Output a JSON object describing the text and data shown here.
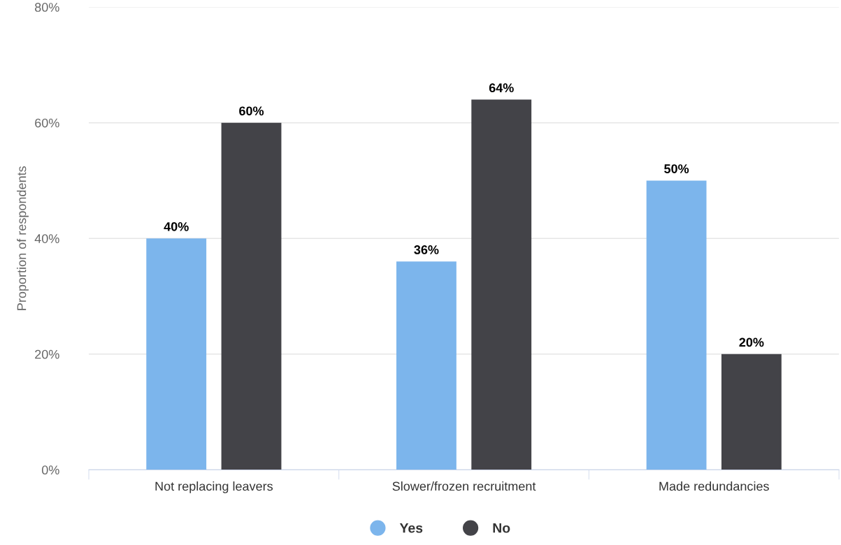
{
  "chart_data": {
    "type": "bar",
    "ylabel": "Proportion of respondents",
    "categories": [
      "Not replacing leavers",
      "Slower/frozen recruitment",
      "Made redundancies"
    ],
    "series": [
      {
        "name": "Yes",
        "color": "#7cb5ec",
        "values": [
          40,
          36,
          50
        ],
        "value_labels": [
          "40%",
          "36%",
          "50%"
        ]
      },
      {
        "name": "No",
        "color": "#434348",
        "values": [
          60,
          64,
          20
        ],
        "value_labels": [
          "60%",
          "64%",
          "20%"
        ]
      }
    ],
    "ylim": [
      0,
      80
    ],
    "yticks": [
      {
        "value": 0,
        "label": "0%"
      },
      {
        "value": 20,
        "label": "20%"
      },
      {
        "value": 40,
        "label": "40%"
      },
      {
        "value": 60,
        "label": "60%"
      },
      {
        "value": 80,
        "label": "80%"
      }
    ],
    "grid": "y",
    "legend": "bottom"
  }
}
